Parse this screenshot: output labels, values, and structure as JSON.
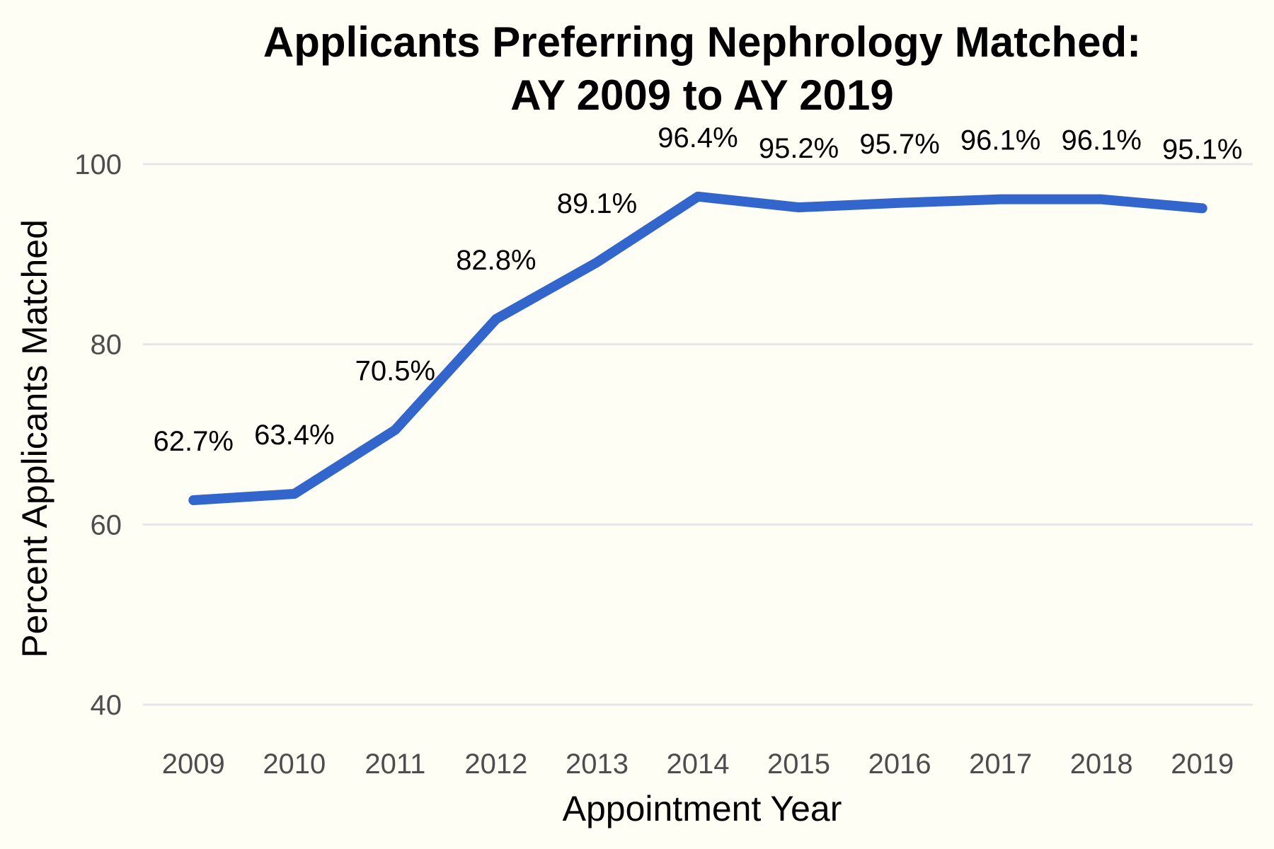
{
  "chart_data": {
    "type": "line",
    "title_lines": [
      "Applicants Preferring Nephrology Matched:",
      "AY 2009 to AY 2019"
    ],
    "xlabel": "Appointment Year",
    "ylabel": "Percent Applicants Matched",
    "categories": [
      "2009",
      "2010",
      "2011",
      "2012",
      "2013",
      "2014",
      "2015",
      "2016",
      "2017",
      "2018",
      "2019"
    ],
    "series": [
      {
        "values": [
          62.7,
          63.4,
          70.5,
          82.8,
          89.1,
          96.4,
          95.2,
          95.7,
          96.1,
          96.1,
          95.1
        ],
        "labels": [
          "62.7%",
          "63.4%",
          "70.5%",
          "82.8%",
          "89.1%",
          "96.4%",
          "95.2%",
          "95.7%",
          "96.1%",
          "96.1%",
          "95.1%"
        ],
        "color": "#3366cc"
      }
    ],
    "ylim": [
      40,
      100
    ],
    "yticks": [
      "40",
      "60",
      "80",
      "100"
    ],
    "grid": true,
    "legend": "none"
  }
}
